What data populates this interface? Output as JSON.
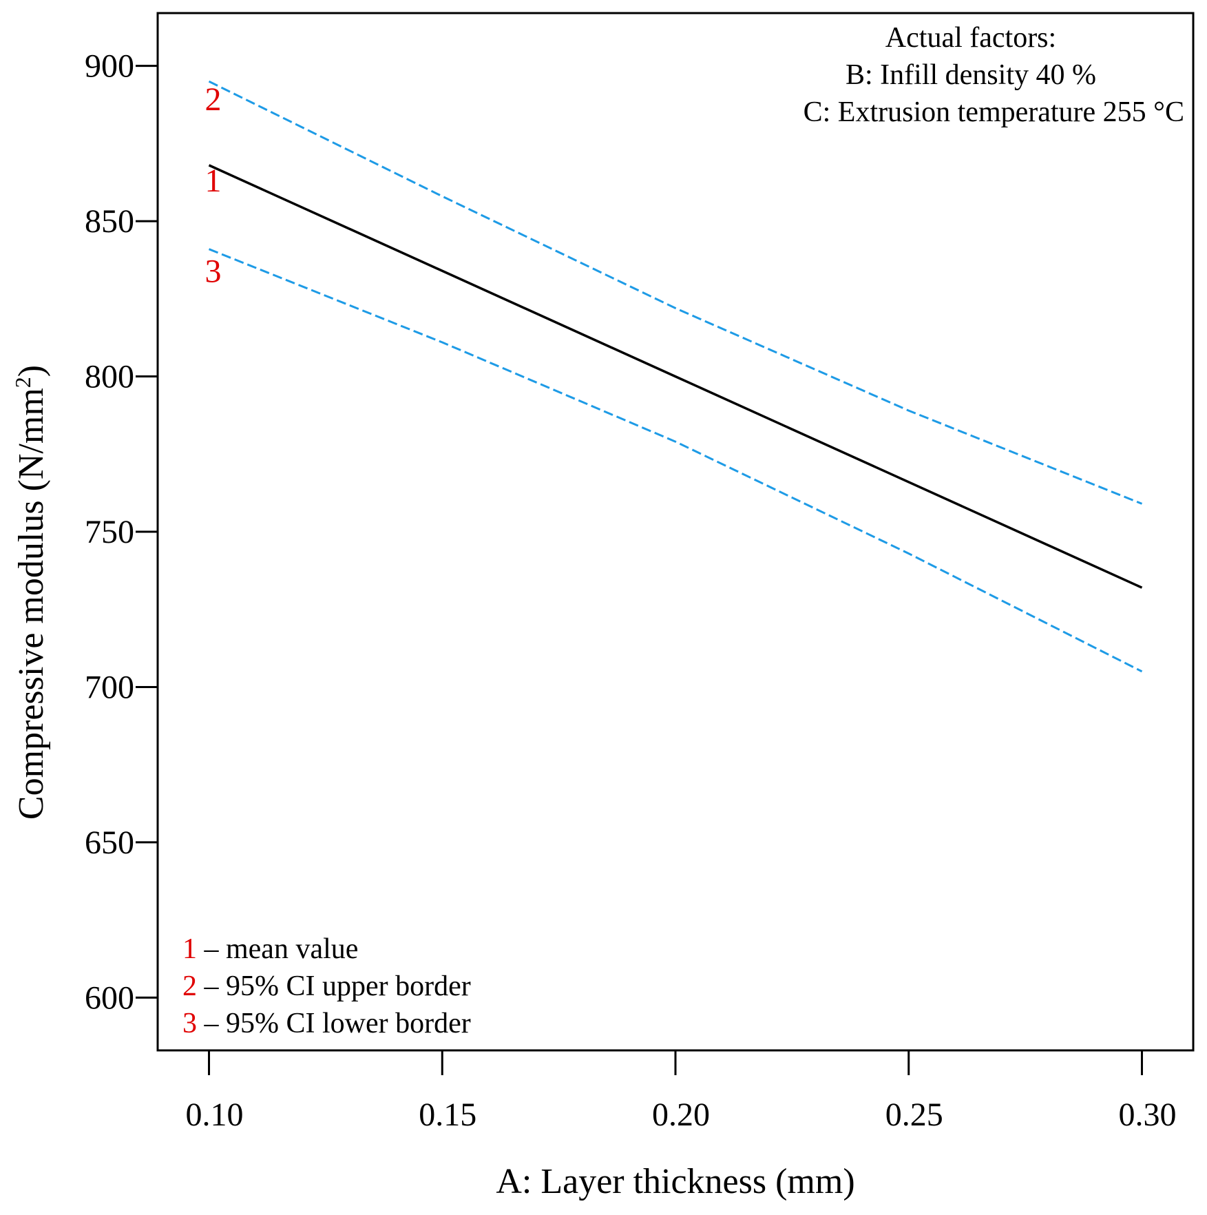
{
  "chart_data": {
    "type": "line",
    "xlabel": "A: Layer thickness (mm)",
    "ylabel": "Compressive modulus (N/mm",
    "ylabel_superscript": "2",
    "ylabel_close": ")",
    "xlim": [
      0.089,
      0.311
    ],
    "ylim": [
      583,
      917
    ],
    "x_ticks": [
      0.1,
      0.15,
      0.2,
      0.25,
      0.3
    ],
    "x_tick_labels": [
      "0.10",
      "0.15",
      "0.20",
      "0.25",
      "0.30"
    ],
    "y_ticks": [
      600,
      650,
      700,
      750,
      800,
      850,
      900
    ],
    "y_tick_labels": [
      "600",
      "650",
      "700",
      "750",
      "800",
      "850",
      "900"
    ],
    "grid": false,
    "series": [
      {
        "name": "mean value",
        "number": "1",
        "color": "#000000",
        "style": "solid",
        "x": [
          0.1,
          0.2,
          0.3
        ],
        "values": [
          868,
          800,
          732
        ]
      },
      {
        "name": "95% CI upper border",
        "number": "2",
        "color": "#1e9be6",
        "style": "dashed",
        "x": [
          0.1,
          0.15,
          0.2,
          0.25,
          0.3
        ],
        "values": [
          895,
          858,
          822,
          789,
          759
        ]
      },
      {
        "name": "95% CI lower border",
        "number": "3",
        "color": "#1e9be6",
        "style": "dashed",
        "x": [
          0.1,
          0.15,
          0.2,
          0.25,
          0.3
        ],
        "values": [
          841,
          811,
          779,
          743,
          705
        ]
      }
    ],
    "annotation": {
      "title": "Actual factors:",
      "lines": [
        "B: Infill density 40 %",
        "C: Extrusion temperature 255 °C"
      ]
    },
    "legend": {
      "placement": "bottom-left",
      "items": [
        {
          "number": "1",
          "text": " – mean value"
        },
        {
          "number": "2",
          "text": " – 95% CI upper border"
        },
        {
          "number": "3",
          "text": " – 95% CI lower border"
        }
      ]
    }
  }
}
